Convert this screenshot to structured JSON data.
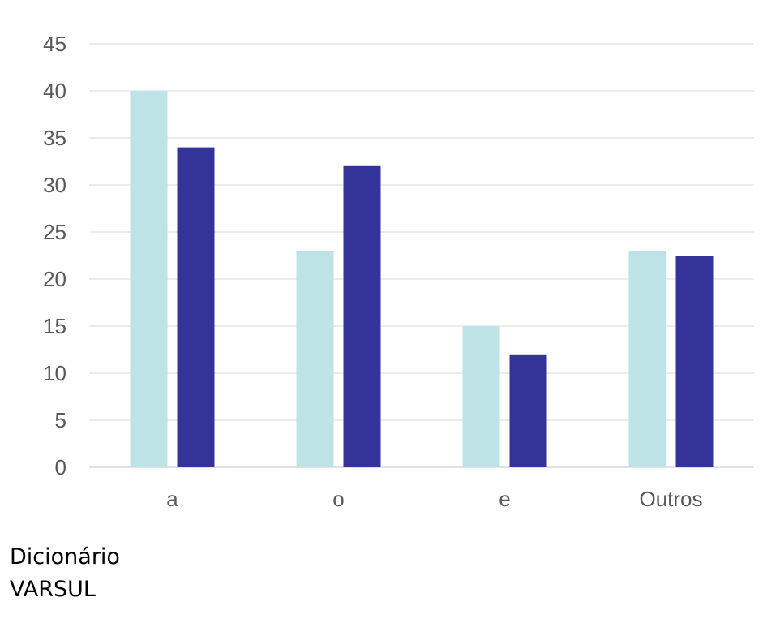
{
  "chart_data": {
    "type": "bar",
    "categories": [
      "a",
      "o",
      "e",
      "Outros"
    ],
    "series": [
      {
        "values": [
          40,
          23,
          15,
          23
        ],
        "color": "#bde3e6"
      },
      {
        "values": [
          34,
          32,
          12,
          22.5
        ],
        "color": "#333399"
      }
    ],
    "title": "",
    "xlabel": "",
    "ylabel": "",
    "ylim": [
      0,
      45
    ],
    "yticks": [
      0,
      5,
      10,
      15,
      20,
      25,
      30,
      35,
      40,
      45
    ],
    "grid": true,
    "gridline_color": "#d9d9d9"
  },
  "labels": {
    "line1": "Dicionário",
    "line2": "VARSUL"
  }
}
